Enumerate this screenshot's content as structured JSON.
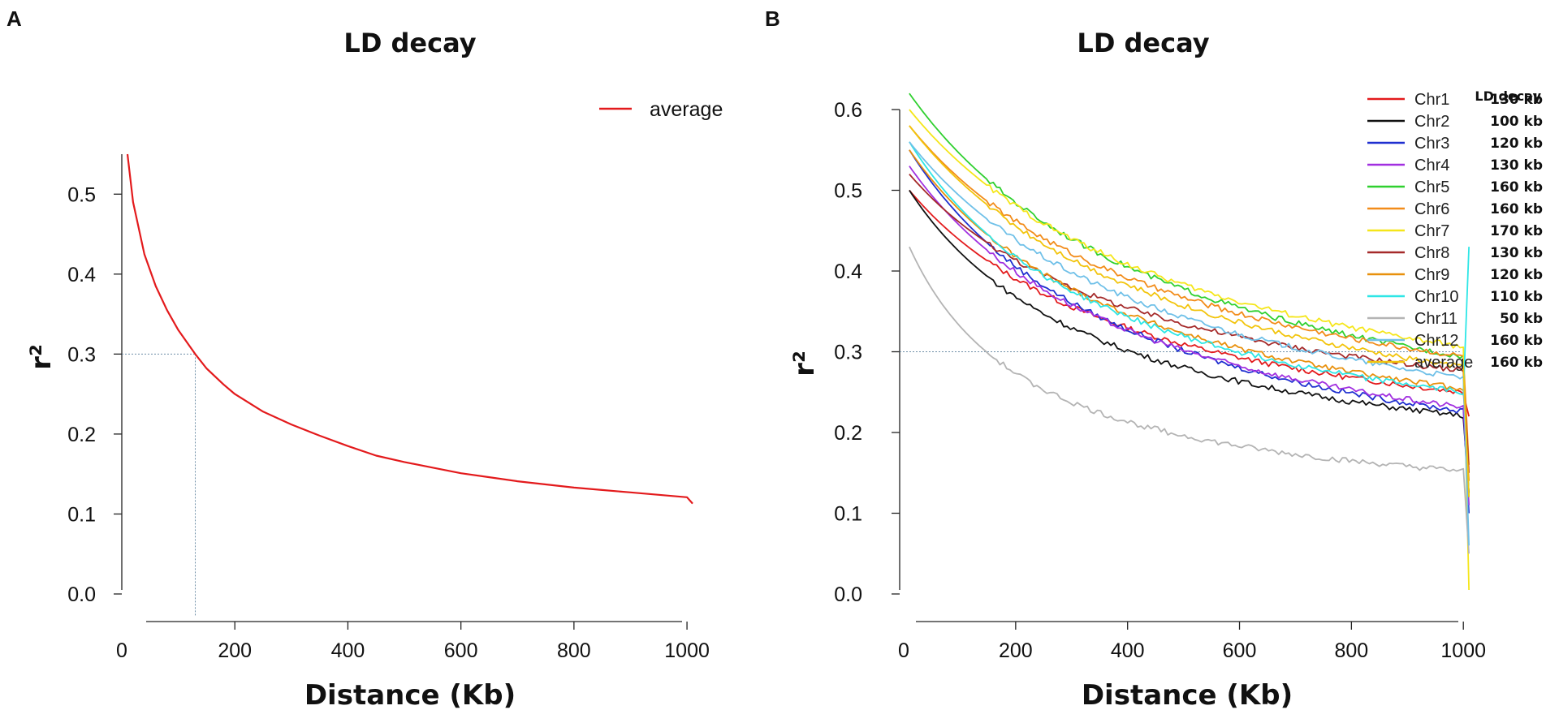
{
  "chart_data": [
    {
      "panel": "A",
      "type": "line",
      "title": "LD decay",
      "xlabel": "Distance (Kb)",
      "ylabel": "r²",
      "xlim": [
        0,
        1020
      ],
      "ylim": [
        0,
        0.55
      ],
      "xticks": [
        0,
        200,
        400,
        600,
        800,
        1000
      ],
      "yticks": [
        0.0,
        0.1,
        0.2,
        0.3,
        0.4,
        0.5
      ],
      "threshold_y": 0.3,
      "threshold_x": 130,
      "legend": [
        {
          "name": "average",
          "color": "#e31a1c"
        }
      ],
      "series": [
        {
          "name": "average",
          "color": "#e31a1c",
          "x": [
            10,
            20,
            40,
            60,
            80,
            100,
            120,
            130,
            150,
            180,
            200,
            250,
            300,
            350,
            400,
            450,
            500,
            550,
            600,
            650,
            700,
            750,
            800,
            850,
            900,
            950,
            1000,
            1010
          ],
          "y": [
            0.55,
            0.49,
            0.425,
            0.385,
            0.355,
            0.33,
            0.31,
            0.3,
            0.282,
            0.262,
            0.25,
            0.228,
            0.212,
            0.198,
            0.185,
            0.173,
            0.165,
            0.158,
            0.151,
            0.146,
            0.141,
            0.137,
            0.133,
            0.13,
            0.127,
            0.124,
            0.121,
            0.113
          ]
        }
      ]
    },
    {
      "panel": "B",
      "type": "line",
      "title": "LD decay",
      "xlabel": "Distance (Kb)",
      "ylabel": "r²",
      "xlim": [
        0,
        1020
      ],
      "ylim": [
        0,
        0.6
      ],
      "xticks": [
        0,
        200,
        400,
        600,
        800,
        1000
      ],
      "yticks": [
        0.0,
        0.1,
        0.2,
        0.3,
        0.4,
        0.5,
        0.6
      ],
      "threshold_y": 0.3,
      "legend_header": "LD decay",
      "series": [
        {
          "name": "Chr1",
          "decay": "130 kb",
          "color": "#e31a1c",
          "start": 0.5,
          "end": 0.14,
          "k": 0.023,
          "tail": 0.22
        },
        {
          "name": "Chr2",
          "decay": "100 kb",
          "color": "#111111",
          "start": 0.5,
          "end": 0.12,
          "k": 0.028,
          "tail": 0.125
        },
        {
          "name": "Chr3",
          "decay": "120 kb",
          "color": "#1f2fd0",
          "start": 0.55,
          "end": 0.09,
          "k": 0.024,
          "tail": 0.1
        },
        {
          "name": "Chr4",
          "decay": "130 kb",
          "color": "#a12fe0",
          "start": 0.53,
          "end": 0.1,
          "k": 0.023,
          "tail": 0.11
        },
        {
          "name": "Chr5",
          "decay": "160 kb",
          "color": "#2fd02f",
          "start": 0.62,
          "end": 0.13,
          "k": 0.02,
          "tail": 0.12
        },
        {
          "name": "Chr6",
          "decay": "160 kb",
          "color": "#f28c1a",
          "start": 0.58,
          "end": 0.15,
          "k": 0.02,
          "tail": 0.16
        },
        {
          "name": "Chr7",
          "decay": "170 kb",
          "color": "#f5e61a",
          "start": 0.6,
          "end": 0.15,
          "k": 0.019,
          "tail": 0.005
        },
        {
          "name": "Chr8",
          "decay": "130 kb",
          "color": "#a52a2a",
          "start": 0.52,
          "end": 0.17,
          "k": 0.023,
          "tail": 0.15
        },
        {
          "name": "Chr9",
          "decay": "120 kb",
          "color": "#e8900c",
          "start": 0.55,
          "end": 0.13,
          "k": 0.024,
          "tail": 0.14
        },
        {
          "name": "Chr10",
          "decay": "110 kb",
          "color": "#2ee6e6",
          "start": 0.56,
          "end": 0.13,
          "k": 0.026,
          "tail": 0.43
        },
        {
          "name": "Chr11",
          "decay": "50 kb",
          "color": "#b4b4b4",
          "start": 0.43,
          "end": 0.09,
          "k": 0.045,
          "tail": 0.05
        },
        {
          "name": "Chr12",
          "decay": "160 kb",
          "color": "#6fc0e8",
          "start": 0.56,
          "end": 0.12,
          "k": 0.02,
          "tail": 0.06
        },
        {
          "name": "average",
          "decay": "160 kb",
          "color": "#f2c40c",
          "start": 0.58,
          "end": 0.13,
          "k": 0.02,
          "tail": 0.12
        }
      ]
    }
  ]
}
